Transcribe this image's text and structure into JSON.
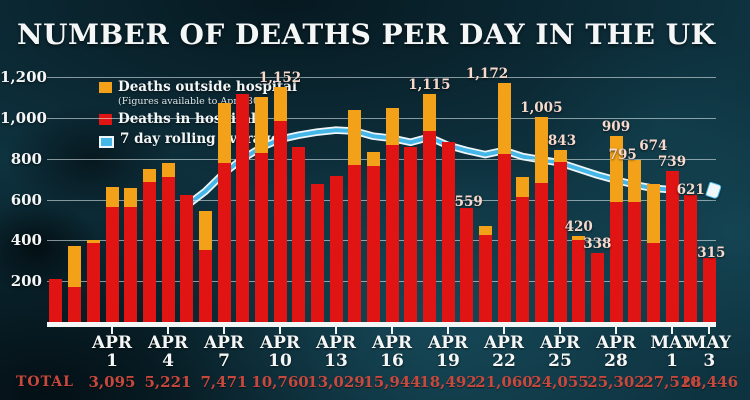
{
  "title": "NUMBER OF DEATHS PER DAY IN THE UK",
  "colors": {
    "background": "#0e3340",
    "hospital_red": "#e01413",
    "outside_orange": "#f2a118",
    "rolling_line_blue": "#45b6e8",
    "line_casing_white": "#eef6f9",
    "bar_label_pink": "#f7d9ce",
    "totals_red": "#c7483d",
    "axis_text_white": "#f5f7f7"
  },
  "legend": [
    {
      "label": "Deaths outside hospital",
      "note": "(Figures available to April 30)",
      "color": "#f2a118",
      "swatch": "square"
    },
    {
      "label": "Deaths in hospital",
      "color": "#e01413",
      "swatch": "square"
    },
    {
      "label": "7 day rolling average",
      "color": "#45b6e8",
      "swatch": "line"
    }
  ],
  "y_axis": {
    "ticks": [
      {
        "label": "1,200",
        "value": 1200
      },
      {
        "label": "1,000",
        "value": 1000
      },
      {
        "label": "800",
        "value": 800
      },
      {
        "label": "600",
        "value": 600
      },
      {
        "label": "400",
        "value": 400
      },
      {
        "label": "200",
        "value": 200
      }
    ]
  },
  "x_axis": {
    "ticks": [
      {
        "date": "Apr 1",
        "month": "APR",
        "day": "1"
      },
      {
        "date": "Apr 4",
        "month": "APR",
        "day": "4"
      },
      {
        "date": "Apr 7",
        "month": "APR",
        "day": "7"
      },
      {
        "date": "Apr 10",
        "month": "APR",
        "day": "10"
      },
      {
        "date": "Apr 13",
        "month": "APR",
        "day": "13"
      },
      {
        "date": "Apr 16",
        "month": "APR",
        "day": "16"
      },
      {
        "date": "Apr 19",
        "month": "APR",
        "day": "19"
      },
      {
        "date": "Apr 22",
        "month": "APR",
        "day": "22"
      },
      {
        "date": "Apr 25",
        "month": "APR",
        "day": "25"
      },
      {
        "date": "Apr 28",
        "month": "APR",
        "day": "28"
      },
      {
        "date": "May 1",
        "month": "MAY",
        "day": "1"
      },
      {
        "date": "May 3",
        "month": "MAY",
        "day": "3"
      }
    ]
  },
  "totals": {
    "label": "TOTAL",
    "values": [
      {
        "date": "Apr 1",
        "text": "3,095"
      },
      {
        "date": "Apr 4",
        "text": "5,221"
      },
      {
        "date": "Apr 7",
        "text": "7,471"
      },
      {
        "date": "Apr 10",
        "text": "10,760"
      },
      {
        "date": "Apr 13",
        "text": "13,029"
      },
      {
        "date": "Apr 16",
        "text": "15,944"
      },
      {
        "date": "Apr 19",
        "text": "18,492"
      },
      {
        "date": "Apr 22",
        "text": "21,060"
      },
      {
        "date": "Apr 25",
        "text": "24,055"
      },
      {
        "date": "Apr 28",
        "text": "25,302"
      },
      {
        "date": "May 1",
        "text": "27,510"
      },
      {
        "date": "May 3",
        "text": "28,446"
      }
    ]
  },
  "chart_data": {
    "type": "bar",
    "stacked": true,
    "ylim": [
      0,
      1200
    ],
    "categories": [
      "Mar 29",
      "Mar 30",
      "Mar 31",
      "Apr 1",
      "Apr 2",
      "Apr 3",
      "Apr 4",
      "Apr 5",
      "Apr 6",
      "Apr 7",
      "Apr 8",
      "Apr 9",
      "Apr 10",
      "Apr 11",
      "Apr 12",
      "Apr 13",
      "Apr 14",
      "Apr 15",
      "Apr 16",
      "Apr 17",
      "Apr 18",
      "Apr 19",
      "Apr 20",
      "Apr 21",
      "Apr 22",
      "Apr 23",
      "Apr 24",
      "Apr 25",
      "Apr 26",
      "Apr 27",
      "Apr 28",
      "Apr 29",
      "Apr 30",
      "May 1",
      "May 2",
      "May 3"
    ],
    "series": [
      {
        "name": "Deaths in hospital",
        "color": "#e01413",
        "values": [
          210,
          170,
          385,
          565,
          565,
          685,
          710,
          620,
          355,
          780,
          1115,
          830,
          985,
          855,
          675,
          715,
          770,
          765,
          865,
          855,
          935,
          880,
          559,
          425,
          825,
          610,
          680,
          785,
          400,
          338,
          590,
          590,
          385,
          739,
          621,
          315
        ]
      },
      {
        "name": "Deaths outside hospital",
        "color": "#f2a118",
        "values": [
          0,
          200,
          15,
          95,
          90,
          65,
          70,
          0,
          190,
          295,
          0,
          270,
          167,
          0,
          0,
          0,
          270,
          70,
          185,
          0,
          180,
          0,
          0,
          45,
          347,
          100,
          325,
          58,
          20,
          0,
          319,
          205,
          289,
          0,
          0,
          0
        ]
      }
    ],
    "bar_labels": [
      {
        "date": "Apr 10",
        "text": "1,152"
      },
      {
        "date": "Apr 18",
        "text": "1,115"
      },
      {
        "date": "Apr 20",
        "text": "559"
      },
      {
        "date": "Apr 22",
        "text": "1,172"
      },
      {
        "date": "Apr 24",
        "text": "1,005"
      },
      {
        "date": "Apr 25",
        "text": "843"
      },
      {
        "date": "Apr 26",
        "text": "420"
      },
      {
        "date": "Apr 27",
        "text": "338"
      },
      {
        "date": "Apr 28",
        "text": "909"
      },
      {
        "date": "Apr 29",
        "text": "795"
      },
      {
        "date": "Apr 30",
        "text": "674"
      },
      {
        "date": "May 1",
        "text": "739"
      },
      {
        "date": "May 2",
        "text": "621",
        "marker": "pointer"
      },
      {
        "date": "May 3",
        "text": "315"
      }
    ],
    "rolling_average": {
      "name": "7 day rolling average",
      "points": [
        {
          "date": "Apr 5",
          "value": 570
        },
        {
          "date": "Apr 6",
          "value": 640
        },
        {
          "date": "Apr 7",
          "value": 730
        },
        {
          "date": "Apr 8",
          "value": 800
        },
        {
          "date": "Apr 9",
          "value": 855
        },
        {
          "date": "Apr 10",
          "value": 895
        },
        {
          "date": "Apr 11",
          "value": 915
        },
        {
          "date": "Apr 12",
          "value": 930
        },
        {
          "date": "Apr 13",
          "value": 940
        },
        {
          "date": "Apr 14",
          "value": 935
        },
        {
          "date": "Apr 15",
          "value": 910
        },
        {
          "date": "Apr 16",
          "value": 900
        },
        {
          "date": "Apr 17",
          "value": 880
        },
        {
          "date": "Apr 18",
          "value": 905
        },
        {
          "date": "Apr 19",
          "value": 865
        },
        {
          "date": "Apr 20",
          "value": 840
        },
        {
          "date": "Apr 21",
          "value": 820
        },
        {
          "date": "Apr 22",
          "value": 840
        },
        {
          "date": "Apr 23",
          "value": 810
        },
        {
          "date": "Apr 24",
          "value": 795
        },
        {
          "date": "Apr 25",
          "value": 780
        },
        {
          "date": "Apr 26",
          "value": 750
        },
        {
          "date": "Apr 27",
          "value": 720
        },
        {
          "date": "Apr 28",
          "value": 695
        },
        {
          "date": "Apr 29",
          "value": 672
        },
        {
          "date": "Apr 30",
          "value": 655
        },
        {
          "date": "May 1",
          "value": 648
        }
      ]
    }
  }
}
